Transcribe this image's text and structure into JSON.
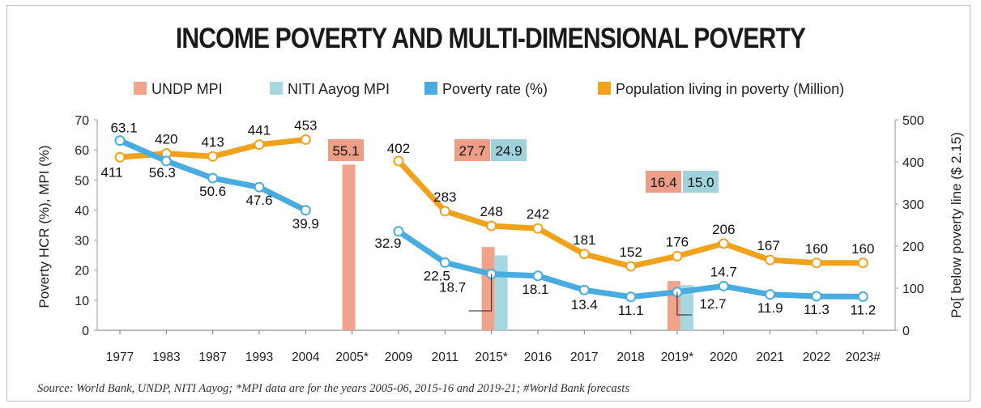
{
  "title": "INCOME POVERTY AND MULTI-DIMENSIONAL POVERTY",
  "source": "Source: World Bank, UNDP, NITI Aayog;  *MPI data are for the years 2005-06, 2015-16 and 2019-21;  #World Bank forecasts",
  "colors": {
    "undp": "#f0a48c",
    "niti": "#a7d7df",
    "poverty_rate": "#49ace0",
    "population": "#f0a21d",
    "undp_label_bg": "#ee9d86",
    "niti_label_bg": "#9fd2dc"
  },
  "chart_data": {
    "type": "bar+line",
    "categories": [
      "1977",
      "1983",
      "1987",
      "1993",
      "2004",
      "2005*",
      "2009",
      "2011",
      "2015*",
      "2016",
      "2017",
      "2018",
      "2019*",
      "2020",
      "2021",
      "2022",
      "2023#"
    ],
    "ylabel_left": "Poverty HCR (%), MPI (%)",
    "ylabel_right": "Po[ below poverty line ($ 2.15)",
    "ylim_left": [
      0,
      70
    ],
    "yticks_left": [
      "0",
      "10",
      "20",
      "30",
      "40",
      "50",
      "60",
      "70"
    ],
    "ylim_right": [
      0,
      500
    ],
    "yticks_right": [
      "0",
      "100",
      "200",
      "300",
      "400",
      "500"
    ],
    "legend_position": "top",
    "series": [
      {
        "name": "UNDP MPI",
        "type": "bar",
        "axis": "left",
        "values": [
          null,
          null,
          null,
          null,
          null,
          55.1,
          null,
          null,
          27.7,
          null,
          null,
          null,
          16.4,
          null,
          null,
          null,
          null
        ],
        "labels": [
          null,
          null,
          null,
          null,
          null,
          "55.1",
          null,
          null,
          "27.7",
          null,
          null,
          null,
          "16.4",
          null,
          null,
          null,
          null
        ]
      },
      {
        "name": "NITI Aayog MPI",
        "type": "bar",
        "axis": "left",
        "values": [
          null,
          null,
          null,
          null,
          null,
          null,
          null,
          null,
          24.9,
          null,
          null,
          null,
          15.0,
          null,
          null,
          null,
          null
        ],
        "labels": [
          null,
          null,
          null,
          null,
          null,
          null,
          null,
          null,
          "24.9",
          null,
          null,
          null,
          "15.0",
          null,
          null,
          null,
          null
        ]
      },
      {
        "name": "Poverty rate (%)",
        "type": "line",
        "axis": "left",
        "values": [
          63.1,
          56.3,
          50.6,
          47.6,
          39.9,
          null,
          32.9,
          22.5,
          18.7,
          18.1,
          13.4,
          11.1,
          12.7,
          14.7,
          11.9,
          11.3,
          11.2
        ],
        "labels": [
          "63.1",
          "56.3",
          "50.6",
          "47.6",
          "39.9",
          null,
          "32.9",
          "22.5",
          "18.7",
          "18.1",
          "13.4",
          "11.1",
          "12.7",
          "14.7",
          "11.9",
          "11.3",
          "11.2"
        ]
      },
      {
        "name": "Population living in poverty (Million)",
        "type": "line",
        "axis": "right",
        "values": [
          411,
          420,
          413,
          441,
          453,
          null,
          402,
          283,
          248,
          242,
          181,
          152,
          176,
          206,
          167,
          160,
          160
        ],
        "labels": [
          "411",
          "420",
          "413",
          "441",
          "453",
          null,
          "402",
          "283",
          "248",
          "242",
          "181",
          "152",
          "176",
          "206",
          "167",
          "160",
          "160"
        ]
      }
    ]
  }
}
